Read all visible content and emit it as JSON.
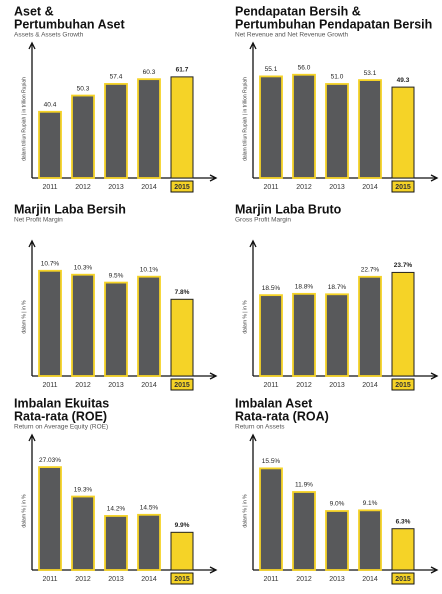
{
  "chart_data": [
    {
      "type": "bar",
      "title": [
        "Aset &",
        "Pertumbuhan Aset"
      ],
      "subtitle": "Assets & Assets Growth",
      "y_label": "dalam triliun Rupiah | in trillion Rupiah",
      "categories": [
        "2011",
        "2012",
        "2013",
        "2014",
        "2015"
      ],
      "values": [
        40.4,
        50.3,
        57.4,
        60.3,
        61.7
      ],
      "value_labels": [
        "40.4",
        "50.3",
        "57.4",
        "60.3",
        "61.7"
      ],
      "ylim": [
        0,
        72
      ],
      "color": "#58595b",
      "highlight_color": "#f5d327"
    },
    {
      "type": "bar",
      "title": [
        "Pendapatan Bersih &",
        "Pertumbuhan Pendapatan Bersih"
      ],
      "subtitle": "Net Revenue and Net Revenue Growth",
      "y_label": "dalam triliun Rupiah | in trillion Rupiah",
      "categories": [
        "2011",
        "2012",
        "2013",
        "2014",
        "2015"
      ],
      "values": [
        55.1,
        56.0,
        51.0,
        53.1,
        49.3
      ],
      "value_labels": [
        "55.1",
        "56.0",
        "51.0",
        "53.1",
        "49.3"
      ],
      "ylim": [
        0,
        64
      ],
      "color": "#58595b",
      "highlight_color": "#f5d327"
    },
    {
      "type": "bar",
      "title": [
        "Marjin Laba Bersih"
      ],
      "subtitle": "Net Profit Margin",
      "y_label": "dalam % | in %",
      "categories": [
        "2011",
        "2012",
        "2013",
        "2014",
        "2015"
      ],
      "values": [
        10.7,
        10.3,
        9.5,
        10.1,
        7.8
      ],
      "value_labels": [
        "10.7%",
        "10.3%",
        "9.5%",
        "10.1%",
        "7.8%"
      ],
      "ylim": [
        0,
        12
      ],
      "color": "#58595b",
      "highlight_color": "#f5d327"
    },
    {
      "type": "bar",
      "title": [
        "Marjin Laba Bruto"
      ],
      "subtitle": "Gross Profit Margin",
      "y_label": "dalam % | in %",
      "categories": [
        "2011",
        "2012",
        "2013",
        "2014",
        "2015"
      ],
      "values": [
        18.5,
        18.8,
        18.7,
        22.7,
        23.7
      ],
      "value_labels": [
        "18.5%",
        "18.8%",
        "18.7%",
        "22.7%",
        "23.7%"
      ],
      "ylim": [
        0,
        27
      ],
      "color": "#58595b",
      "highlight_color": "#f5d327"
    },
    {
      "type": "bar",
      "title": [
        "Imbalan Ekuitas",
        "Rata-rata (ROE)"
      ],
      "subtitle": "Return on Average Equity (ROE)",
      "y_label": "dalam % | in %",
      "categories": [
        "2011",
        "2012",
        "2013",
        "2014",
        "2015"
      ],
      "values": [
        27.03,
        19.3,
        14.2,
        14.5,
        9.9
      ],
      "value_labels": [
        "27.03%",
        "19.3%",
        "14.2%",
        "14.5%",
        "9.9%"
      ],
      "ylim": [
        0,
        31
      ],
      "color": "#58595b",
      "highlight_color": "#f5d327"
    },
    {
      "type": "bar",
      "title": [
        "Imbalan Aset",
        "Rata-rata (ROA)"
      ],
      "subtitle": "Return on Assets",
      "y_label": "dalam % | in %",
      "categories": [
        "2011",
        "2012",
        "2013",
        "2014",
        "2015"
      ],
      "values": [
        15.5,
        11.9,
        9.0,
        9.1,
        6.3
      ],
      "value_labels": [
        "15.5%",
        "11.9%",
        "9.0%",
        "9.1%",
        "6.3%"
      ],
      "ylim": [
        0,
        18
      ],
      "color": "#58595b",
      "highlight_color": "#f5d327"
    }
  ]
}
